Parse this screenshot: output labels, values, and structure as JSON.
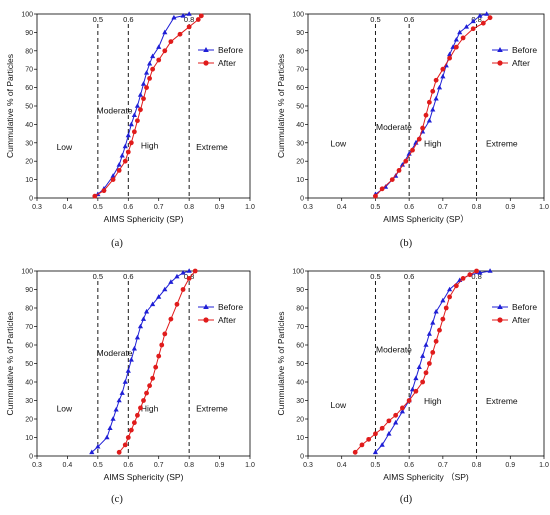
{
  "colors": {
    "before": "#1f1fd6",
    "after": "#e01b1b",
    "axis": "#000000"
  },
  "chart_data": [
    {
      "panel_label": "(a)",
      "type": "line",
      "xlabel": "AIMS Sphericity (SP)",
      "ylabel": "Cummulative % of Particles",
      "xlim": [
        0.3,
        1.0
      ],
      "ylim": [
        0,
        100
      ],
      "xticks": [
        "0.3",
        "0.4",
        "0.5",
        "0.6",
        "0.7",
        "0.8",
        "0.9",
        "1.0"
      ],
      "yticks": [
        "0",
        "10",
        "20",
        "30",
        "40",
        "50",
        "60",
        "70",
        "80",
        "90",
        "100"
      ],
      "thresholds": [
        {
          "x": 0.5,
          "label": "0.5"
        },
        {
          "x": 0.6,
          "label": "0.6"
        },
        {
          "x": 0.8,
          "label": "0.8"
        }
      ],
      "regions": [
        {
          "label": "Low",
          "x": 0.39,
          "y": 26
        },
        {
          "label": "Moderate",
          "x": 0.555,
          "y": 46
        },
        {
          "label": "High",
          "x": 0.67,
          "y": 27
        },
        {
          "label": "Extreme",
          "x": 0.875,
          "y": 26
        }
      ],
      "legend": "right",
      "series": [
        {
          "name": "Before",
          "marker": "triangle",
          "x": [
            0.5,
            0.52,
            0.55,
            0.57,
            0.58,
            0.59,
            0.6,
            0.61,
            0.62,
            0.63,
            0.64,
            0.65,
            0.66,
            0.67,
            0.68,
            0.7,
            0.72,
            0.75,
            0.78,
            0.8
          ],
          "y": [
            2,
            5,
            12,
            18,
            23,
            28,
            34,
            40,
            45,
            50,
            56,
            62,
            68,
            73,
            77,
            82,
            90,
            98,
            99,
            100
          ]
        },
        {
          "name": "After",
          "marker": "circle",
          "x": [
            0.49,
            0.52,
            0.55,
            0.57,
            0.59,
            0.6,
            0.61,
            0.62,
            0.63,
            0.64,
            0.65,
            0.66,
            0.67,
            0.68,
            0.7,
            0.72,
            0.74,
            0.77,
            0.8,
            0.83,
            0.84
          ],
          "y": [
            1,
            4,
            10,
            15,
            20,
            25,
            30,
            36,
            42,
            48,
            54,
            60,
            65,
            70,
            75,
            80,
            85,
            89,
            93,
            97,
            99
          ]
        }
      ]
    },
    {
      "panel_label": "(b)",
      "type": "line",
      "xlabel": "AIMS Sphericity (SP）",
      "ylabel": "Cummulative % of Particles",
      "xlim": [
        0.3,
        1.0
      ],
      "ylim": [
        0,
        100
      ],
      "xticks": [
        "0.3",
        "0.4",
        "0.5",
        "0.6",
        "0.7",
        "0.8",
        "0.9",
        "1.0"
      ],
      "yticks": [
        "0",
        "10",
        "20",
        "30",
        "40",
        "50",
        "60",
        "70",
        "80",
        "90",
        "100"
      ],
      "thresholds": [
        {
          "x": 0.5,
          "label": "0.5"
        },
        {
          "x": 0.6,
          "label": "0.6"
        },
        {
          "x": 0.8,
          "label": "0.8"
        }
      ],
      "regions": [
        {
          "label": "Low",
          "x": 0.39,
          "y": 28
        },
        {
          "label": "Moderate",
          "x": 0.555,
          "y": 37
        },
        {
          "label": "High",
          "x": 0.67,
          "y": 28
        },
        {
          "label": "Extreme",
          "x": 0.875,
          "y": 28
        }
      ],
      "legend": "right",
      "series": [
        {
          "name": "Before",
          "marker": "triangle",
          "x": [
            0.5,
            0.53,
            0.56,
            0.58,
            0.6,
            0.62,
            0.64,
            0.66,
            0.67,
            0.68,
            0.69,
            0.7,
            0.71,
            0.72,
            0.73,
            0.74,
            0.75,
            0.77,
            0.79,
            0.81,
            0.83
          ],
          "y": [
            2,
            6,
            12,
            18,
            24,
            30,
            36,
            42,
            48,
            54,
            60,
            66,
            72,
            78,
            82,
            86,
            90,
            93,
            96,
            99,
            100
          ]
        },
        {
          "name": "After",
          "marker": "circle",
          "x": [
            0.5,
            0.52,
            0.55,
            0.57,
            0.59,
            0.61,
            0.63,
            0.64,
            0.65,
            0.66,
            0.67,
            0.68,
            0.7,
            0.72,
            0.74,
            0.76,
            0.79,
            0.82,
            0.84
          ],
          "y": [
            1,
            5,
            10,
            15,
            20,
            26,
            32,
            38,
            45,
            52,
            58,
            64,
            70,
            76,
            82,
            87,
            92,
            95,
            98
          ]
        }
      ]
    },
    {
      "panel_label": "(c)",
      "type": "line",
      "xlabel": "AIMS Sphericity  (SP)",
      "ylabel": "Cummulative % of Particles",
      "xlim": [
        0.3,
        1.0
      ],
      "ylim": [
        0,
        100
      ],
      "xticks": [
        "0.3",
        "0.4",
        "0.5",
        "0.6",
        "0.7",
        "0.8",
        "0.9",
        "1.0"
      ],
      "yticks": [
        "0",
        "10",
        "20",
        "30",
        "40",
        "50",
        "60",
        "70",
        "80",
        "90",
        "100"
      ],
      "thresholds": [
        {
          "x": 0.5,
          "label": "0.5"
        },
        {
          "x": 0.6,
          "label": "0.6"
        },
        {
          "x": 0.8,
          "label": "0.8"
        }
      ],
      "regions": [
        {
          "label": "Low",
          "x": 0.39,
          "y": 24
        },
        {
          "label": "Moderate",
          "x": 0.555,
          "y": 54
        },
        {
          "label": "High",
          "x": 0.67,
          "y": 24
        },
        {
          "label": "Extreme",
          "x": 0.875,
          "y": 24
        }
      ],
      "legend": "right",
      "series": [
        {
          "name": "Before",
          "marker": "triangle",
          "x": [
            0.48,
            0.5,
            0.53,
            0.54,
            0.55,
            0.56,
            0.57,
            0.58,
            0.59,
            0.6,
            0.61,
            0.62,
            0.63,
            0.64,
            0.65,
            0.66,
            0.68,
            0.7,
            0.72,
            0.74,
            0.76,
            0.78,
            0.8
          ],
          "y": [
            2,
            5,
            10,
            15,
            20,
            25,
            30,
            34,
            40,
            46,
            52,
            58,
            64,
            70,
            74,
            78,
            82,
            86,
            90,
            94,
            97,
            99,
            100
          ]
        },
        {
          "name": "After",
          "marker": "circle",
          "x": [
            0.57,
            0.59,
            0.6,
            0.61,
            0.62,
            0.63,
            0.64,
            0.65,
            0.66,
            0.67,
            0.68,
            0.69,
            0.7,
            0.71,
            0.72,
            0.74,
            0.76,
            0.78,
            0.8,
            0.82
          ],
          "y": [
            2,
            6,
            10,
            14,
            18,
            22,
            26,
            30,
            34,
            38,
            42,
            48,
            54,
            60,
            66,
            74,
            82,
            90,
            96,
            100
          ]
        }
      ]
    },
    {
      "panel_label": "(d)",
      "type": "line",
      "xlabel": "AIMS Sphericity （SP)",
      "ylabel": "Cummulative % of Particles",
      "xlim": [
        0.3,
        1.0
      ],
      "ylim": [
        0,
        100
      ],
      "xticks": [
        "0.3",
        "0.4",
        "0.5",
        "0.6",
        "0.7",
        "0.8",
        "0.9",
        "1.0"
      ],
      "yticks": [
        "0",
        "10",
        "20",
        "30",
        "40",
        "50",
        "60",
        "70",
        "80",
        "90",
        "100"
      ],
      "thresholds": [
        {
          "x": 0.5,
          "label": "0.5"
        },
        {
          "x": 0.6,
          "label": "0.6"
        },
        {
          "x": 0.8,
          "label": "0.8"
        }
      ],
      "regions": [
        {
          "label": "Low",
          "x": 0.39,
          "y": 26
        },
        {
          "label": "Moderate",
          "x": 0.555,
          "y": 56
        },
        {
          "label": "High",
          "x": 0.67,
          "y": 28
        },
        {
          "label": "Extreme",
          "x": 0.875,
          "y": 28
        }
      ],
      "legend": "right",
      "series": [
        {
          "name": "Before",
          "marker": "triangle",
          "x": [
            0.5,
            0.52,
            0.54,
            0.56,
            0.58,
            0.6,
            0.61,
            0.62,
            0.63,
            0.64,
            0.65,
            0.66,
            0.67,
            0.68,
            0.7,
            0.72,
            0.75,
            0.78,
            0.81,
            0.84
          ],
          "y": [
            2,
            6,
            12,
            18,
            24,
            30,
            36,
            42,
            48,
            54,
            60,
            66,
            72,
            78,
            84,
            90,
            95,
            98,
            99,
            100
          ]
        },
        {
          "name": "After",
          "marker": "circle",
          "x": [
            0.44,
            0.46,
            0.48,
            0.5,
            0.52,
            0.54,
            0.56,
            0.58,
            0.6,
            0.62,
            0.64,
            0.65,
            0.66,
            0.67,
            0.68,
            0.69,
            0.7,
            0.71,
            0.72,
            0.74,
            0.76,
            0.78,
            0.8
          ],
          "y": [
            2,
            6,
            9,
            12,
            15,
            19,
            22,
            26,
            30,
            35,
            40,
            45,
            50,
            56,
            62,
            68,
            74,
            80,
            86,
            92,
            96,
            98,
            100
          ]
        }
      ]
    }
  ]
}
